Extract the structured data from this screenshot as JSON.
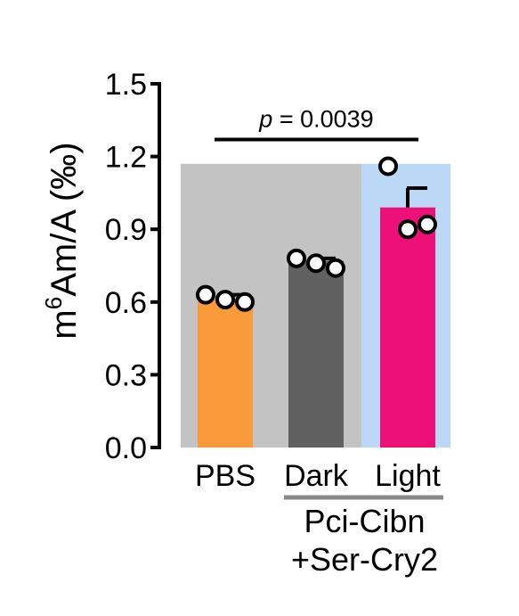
{
  "chart_data": {
    "type": "bar",
    "ylabel": "m⁶Am/A (‰)",
    "ylabel_base": "m",
    "ylabel_sup": "6",
    "ylabel_rest": "Am/A (‰)",
    "ylim": [
      0,
      1.5
    ],
    "yticks": [
      "0.0",
      "0.3",
      "0.6",
      "0.9",
      "1.2",
      "1.5"
    ],
    "categories": [
      "PBS",
      "Dark",
      "Light"
    ],
    "values": [
      0.61,
      0.77,
      0.99
    ],
    "error_upper": [
      0.63,
      0.78,
      1.07
    ],
    "points": [
      [
        0.63,
        0.61,
        0.6
      ],
      [
        0.78,
        0.76,
        0.74
      ],
      [
        1.16,
        0.9,
        0.92
      ]
    ],
    "colors": [
      "#f99b3b",
      "#616161",
      "#ec1078"
    ],
    "backgrounds": [
      {
        "from": 0,
        "to": 1,
        "value": 1.17,
        "color": "#c3c3c3"
      },
      {
        "from": 2,
        "to": 2,
        "value": 1.17,
        "color": "#bcd8f7"
      }
    ],
    "annotation": {
      "p_label": "p",
      "p_value": " = 0.0039",
      "from": 0,
      "to": 2,
      "y": 1.27
    },
    "group_label": {
      "line1": "Pci-Cibn",
      "line2": "+Ser-Cry2",
      "from": 1,
      "to": 2
    }
  }
}
